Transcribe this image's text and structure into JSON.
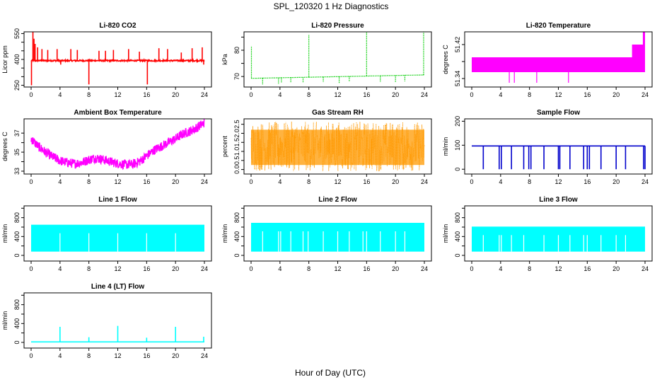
{
  "figure": {
    "title": "SPL_120320  1 Hz Diagnostics",
    "xlabel": "Hour of Day (UTC)"
  },
  "chart_data": [
    {
      "type": "line",
      "title": "Li-820 CO2",
      "ylabel": "Licor ppm",
      "color": "#ff0000",
      "xlim": [
        0,
        24
      ],
      "ylim": [
        240,
        560
      ],
      "xticks": [
        0,
        4,
        8,
        12,
        16,
        20,
        24
      ],
      "yticks": [
        250,
        300,
        350,
        400,
        450,
        500,
        550
      ],
      "yticklabels": [
        "250",
        "",
        "",
        "400",
        "",
        "",
        "550"
      ],
      "baseline": 393,
      "band": 8,
      "x": [
        0,
        24
      ],
      "spikes": [
        {
          "x": 0.05,
          "y": 250
        },
        {
          "x": 0.25,
          "y": 560
        },
        {
          "x": 0.4,
          "y": 520
        },
        {
          "x": 0.55,
          "y": 490
        },
        {
          "x": 0.9,
          "y": 470
        },
        {
          "x": 1.5,
          "y": 460
        },
        {
          "x": 2.3,
          "y": 455
        },
        {
          "x": 3.6,
          "y": 460
        },
        {
          "x": 4.1,
          "y": 370
        },
        {
          "x": 5.5,
          "y": 460
        },
        {
          "x": 6.4,
          "y": 455
        },
        {
          "x": 8.0,
          "y": 255
        },
        {
          "x": 9.4,
          "y": 450
        },
        {
          "x": 10.3,
          "y": 450
        },
        {
          "x": 11.4,
          "y": 455
        },
        {
          "x": 13.5,
          "y": 460
        },
        {
          "x": 15.0,
          "y": 445
        },
        {
          "x": 16.1,
          "y": 255
        },
        {
          "x": 17.7,
          "y": 465
        },
        {
          "x": 18.9,
          "y": 460
        },
        {
          "x": 20.8,
          "y": 440
        },
        {
          "x": 22.3,
          "y": 465
        },
        {
          "x": 23.7,
          "y": 470
        },
        {
          "x": 23.9,
          "y": 370
        }
      ]
    },
    {
      "type": "line",
      "title": "Li-820 Pressure",
      "ylabel": "kPa",
      "color": "#00cc00",
      "xlim": [
        0,
        24
      ],
      "ylim": [
        66,
        87
      ],
      "xticks": [
        0,
        4,
        8,
        12,
        16,
        20,
        24
      ],
      "yticks": [
        70,
        75,
        80,
        85
      ],
      "yticklabels": [
        "70",
        "",
        "80",
        ""
      ],
      "baseline_start": 69.3,
      "baseline_end": 70.6,
      "spikes": [
        {
          "x": 0.05,
          "y": 81.5
        },
        {
          "x": 1.6,
          "y": 67.0
        },
        {
          "x": 3.8,
          "y": 67.2
        },
        {
          "x": 4.2,
          "y": 67.5
        },
        {
          "x": 5.5,
          "y": 67.8
        },
        {
          "x": 7.2,
          "y": 67.6
        },
        {
          "x": 8.0,
          "y": 86.0
        },
        {
          "x": 10.0,
          "y": 67.8
        },
        {
          "x": 12.2,
          "y": 67.5
        },
        {
          "x": 13.6,
          "y": 68.0
        },
        {
          "x": 16.0,
          "y": 87.0
        },
        {
          "x": 17.9,
          "y": 68.0
        },
        {
          "x": 20.0,
          "y": 67.7
        },
        {
          "x": 21.3,
          "y": 68.2
        },
        {
          "x": 23.9,
          "y": 87.0
        }
      ]
    },
    {
      "type": "area",
      "title": "Li-820 Temperature",
      "ylabel": "degrees C",
      "color": "#ff00ff",
      "xlim": [
        0,
        24
      ],
      "ylim": [
        51.32,
        51.45
      ],
      "xticks": [
        0,
        4,
        8,
        12,
        16,
        20,
        24
      ],
      "yticks": [
        51.34,
        51.38,
        51.42
      ],
      "yticklabels": [
        "51.34",
        "",
        "51.42"
      ],
      "band_low": 51.355,
      "band_high": 51.39,
      "band_end_x": 23.6,
      "drops": [
        {
          "x": 5.2,
          "y": 51.33
        },
        {
          "x": 5.9,
          "y": 51.33
        },
        {
          "x": 9.0,
          "y": 51.33
        },
        {
          "x": 13.4,
          "y": 51.33
        }
      ],
      "end_steps": [
        {
          "x": 22.2,
          "y": 51.42
        },
        {
          "x": 23.3,
          "y": 51.42
        },
        {
          "x": 23.7,
          "y": 51.45
        }
      ]
    },
    {
      "type": "line",
      "title": "Ambient Box Temperature",
      "ylabel": "degrees C",
      "color": "#ff00ff",
      "xlim": [
        0,
        24
      ],
      "ylim": [
        32.7,
        38.5
      ],
      "xticks": [
        0,
        4,
        8,
        12,
        16,
        20,
        24
      ],
      "yticks": [
        33,
        34,
        35,
        36,
        37
      ],
      "yticklabels": [
        "33",
        "",
        "35",
        "",
        "37"
      ],
      "x": [
        0,
        1,
        2,
        3,
        4,
        5,
        6,
        7,
        8,
        9,
        10,
        11,
        12,
        13,
        14,
        15,
        16,
        17,
        18,
        19,
        20,
        21,
        22,
        23,
        24
      ],
      "values": [
        36.4,
        35.6,
        35.0,
        34.5,
        34.1,
        33.9,
        33.8,
        33.9,
        34.2,
        34.4,
        34.2,
        34.0,
        33.8,
        33.7,
        33.7,
        34.0,
        34.6,
        35.2,
        35.6,
        36.0,
        36.4,
        36.9,
        37.2,
        37.6,
        38.1
      ],
      "amplitude": 0.5
    },
    {
      "type": "line",
      "title": "Gas Stream RH",
      "ylabel": "percent",
      "color": "#ff9900",
      "xlim": [
        0,
        24
      ],
      "ylim": [
        -0.25,
        2.8
      ],
      "xticks": [
        0,
        4,
        8,
        12,
        16,
        20,
        24
      ],
      "yticks": [
        0.0,
        0.5,
        1.0,
        1.5,
        2.0,
        2.5
      ],
      "yticklabels": [
        "0.0",
        "0.5",
        "1.0",
        "1.5",
        "2.0",
        "2.5"
      ],
      "range_low": -0.1,
      "range_high": 2.65,
      "dense_low": 0.25,
      "dense_high": 2.2,
      "x": [
        0,
        24
      ]
    },
    {
      "type": "line",
      "title": "Sample Flow",
      "ylabel": "ml/min",
      "color": "#0000cc",
      "xlim": [
        0,
        24
      ],
      "ylim": [
        -20,
        210
      ],
      "xticks": [
        0,
        4,
        8,
        12,
        16,
        20,
        24
      ],
      "yticks": [
        0,
        100,
        200
      ],
      "yticklabels": [
        "0",
        "100",
        "200"
      ],
      "baseline": 97,
      "dropouts": [
        1.6,
        3.8,
        4.1,
        5.5,
        7.2,
        7.9,
        8.2,
        10.0,
        12.0,
        12.2,
        13.6,
        15.5,
        16.0,
        16.3,
        17.9,
        20.0,
        21.3,
        23.8,
        24.0
      ]
    },
    {
      "type": "area",
      "title": "Line 1 Flow",
      "ylabel": "ml/min",
      "color": "#00ffff",
      "xlim": [
        0,
        24
      ],
      "ylim": [
        -120,
        1050
      ],
      "xticks": [
        0,
        4,
        8,
        12,
        16,
        20,
        24
      ],
      "yticks": [
        0,
        200,
        400,
        600,
        800,
        1000
      ],
      "yticklabels": [
        "0",
        "",
        "400",
        "",
        "800",
        ""
      ],
      "band_low": 80,
      "band_high": 650,
      "band_start_x": 0.0,
      "band_end_x": 24.0,
      "gaps": [
        4.0,
        8.0,
        12.0,
        16.0,
        20.0
      ],
      "rise_end": 0
    },
    {
      "type": "area",
      "title": "Line 2 Flow",
      "ylabel": "ml/min",
      "color": "#00ffff",
      "xlim": [
        0,
        24
      ],
      "ylim": [
        -120,
        1050
      ],
      "xticks": [
        0,
        4,
        8,
        12,
        16,
        20,
        24
      ],
      "yticks": [
        0,
        200,
        400,
        600,
        800,
        1000
      ],
      "yticklabels": [
        "0",
        "",
        "400",
        "",
        "800",
        ""
      ],
      "band_low": 80,
      "band_high": 690,
      "band_start_x": 0.0,
      "band_end_x": 24.0,
      "gaps": [
        1.6,
        3.8,
        4.1,
        5.5,
        7.2,
        7.9,
        10.0,
        12.0,
        13.6,
        15.5,
        16.0,
        17.9,
        20.0,
        21.3
      ],
      "rise_end": 40
    },
    {
      "type": "area",
      "title": "Line 3 Flow",
      "ylabel": "ml/min",
      "color": "#00ffff",
      "xlim": [
        0,
        24
      ],
      "ylim": [
        -120,
        1050
      ],
      "xticks": [
        0,
        4,
        8,
        12,
        16,
        20,
        24
      ],
      "yticks": [
        0,
        200,
        400,
        600,
        800,
        1000
      ],
      "yticklabels": [
        "0",
        "",
        "400",
        "",
        "800",
        ""
      ],
      "band_low": 80,
      "band_high": 610,
      "band_start_x": 0.0,
      "band_end_x": 24.0,
      "gaps": [
        1.6,
        3.8,
        4.1,
        5.5,
        7.2,
        10.0,
        12.0,
        13.6,
        15.5,
        16.0,
        17.9,
        20.0,
        21.3
      ],
      "rise_end": 0
    },
    {
      "type": "line",
      "title": "Line 4 (LT) Flow",
      "ylabel": "ml/min",
      "color": "#00ffff",
      "xlim": [
        0,
        24
      ],
      "ylim": [
        -120,
        1050
      ],
      "xticks": [
        0,
        4,
        8,
        12,
        16,
        20,
        24
      ],
      "yticks": [
        0,
        200,
        400,
        600,
        800,
        1000
      ],
      "yticklabels": [
        "0",
        "",
        "400",
        "",
        "800",
        ""
      ],
      "baseline": 10,
      "spikes": [
        {
          "x": 4.0,
          "y": 330
        },
        {
          "x": 8.0,
          "y": 110
        },
        {
          "x": 12.0,
          "y": 350
        },
        {
          "x": 16.0,
          "y": 100
        },
        {
          "x": 20.0,
          "y": 330
        },
        {
          "x": 23.9,
          "y": 120
        }
      ]
    }
  ]
}
